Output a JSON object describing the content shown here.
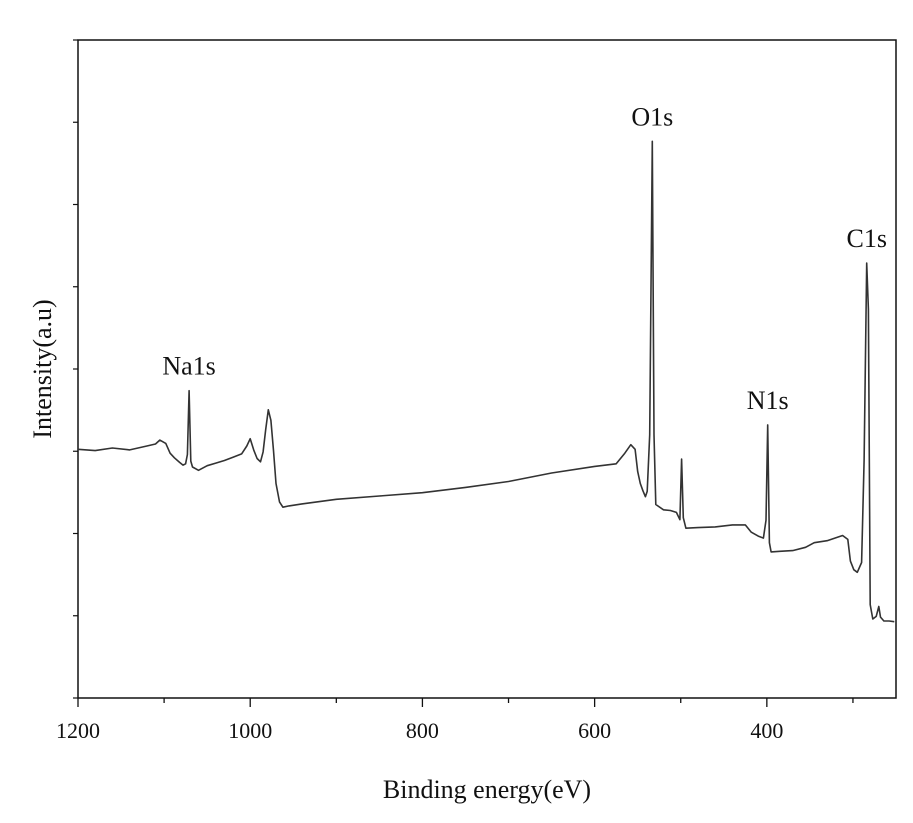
{
  "colors": {
    "line": "#333333",
    "axis": "#111111",
    "background": "#ffffff"
  },
  "chart_data": {
    "type": "line",
    "title": "",
    "xlabel": "Binding energy(eV)",
    "ylabel": "Intensity(a.u)",
    "xlim": [
      1200,
      250
    ],
    "ylim": [
      0,
      100
    ],
    "x_reversed": true,
    "y_tick_labels_shown": false,
    "grid": false,
    "legend": "none",
    "x_ticks": [
      1200,
      1000,
      800,
      600,
      400
    ],
    "x_tick_labels": [
      "1200",
      "1000",
      "800",
      "600",
      "400"
    ],
    "series": [
      {
        "points": [
          [
            1200,
            37.8
          ],
          [
            1180,
            37.6
          ],
          [
            1160,
            38.0
          ],
          [
            1140,
            37.7
          ],
          [
            1120,
            38.3
          ],
          [
            1110,
            38.6
          ],
          [
            1105,
            39.2
          ],
          [
            1098,
            38.7
          ],
          [
            1093,
            37.2
          ],
          [
            1088,
            36.5
          ],
          [
            1082,
            35.8
          ],
          [
            1078,
            35.4
          ],
          [
            1075,
            35.6
          ],
          [
            1073,
            37.0
          ],
          [
            1071,
            46.7
          ],
          [
            1069,
            36.0
          ],
          [
            1067,
            35.1
          ],
          [
            1060,
            34.6
          ],
          [
            1050,
            35.3
          ],
          [
            1040,
            35.7
          ],
          [
            1030,
            36.1
          ],
          [
            1020,
            36.6
          ],
          [
            1010,
            37.1
          ],
          [
            1004,
            38.3
          ],
          [
            1000,
            39.4
          ],
          [
            996,
            37.7
          ],
          [
            992,
            36.4
          ],
          [
            988,
            35.9
          ],
          [
            985,
            37.4
          ],
          [
            982,
            40.8
          ],
          [
            979,
            43.8
          ],
          [
            976,
            42.2
          ],
          [
            973,
            37.6
          ],
          [
            970,
            32.6
          ],
          [
            966,
            29.8
          ],
          [
            962,
            29.0
          ],
          [
            955,
            29.2
          ],
          [
            940,
            29.5
          ],
          [
            900,
            30.2
          ],
          [
            850,
            30.7
          ],
          [
            800,
            31.2
          ],
          [
            750,
            32.0
          ],
          [
            700,
            32.9
          ],
          [
            650,
            34.2
          ],
          [
            600,
            35.2
          ],
          [
            575,
            35.6
          ],
          [
            565,
            37.2
          ],
          [
            558,
            38.5
          ],
          [
            553,
            37.8
          ],
          [
            550,
            34.4
          ],
          [
            547,
            32.6
          ],
          [
            544,
            31.5
          ],
          [
            541,
            30.6
          ],
          [
            539,
            31.4
          ],
          [
            536,
            40.0
          ],
          [
            533,
            84.6
          ],
          [
            531,
            40.0
          ],
          [
            529,
            29.4
          ],
          [
            520,
            28.6
          ],
          [
            512,
            28.5
          ],
          [
            505,
            28.2
          ],
          [
            501,
            27.1
          ],
          [
            499,
            36.3
          ],
          [
            497,
            27.4
          ],
          [
            494,
            25.8
          ],
          [
            480,
            25.9
          ],
          [
            460,
            26.0
          ],
          [
            440,
            26.3
          ],
          [
            425,
            26.3
          ],
          [
            418,
            25.2
          ],
          [
            410,
            24.6
          ],
          [
            404,
            24.3
          ],
          [
            401,
            27.0
          ],
          [
            399,
            41.5
          ],
          [
            397,
            23.6
          ],
          [
            395,
            22.2
          ],
          [
            385,
            22.3
          ],
          [
            370,
            22.4
          ],
          [
            355,
            22.9
          ],
          [
            345,
            23.6
          ],
          [
            330,
            23.9
          ],
          [
            312,
            24.7
          ],
          [
            306,
            24.1
          ],
          [
            303,
            20.8
          ],
          [
            299,
            19.5
          ],
          [
            295,
            19.1
          ],
          [
            290,
            20.6
          ],
          [
            287,
            36.1
          ],
          [
            284,
            66.1
          ],
          [
            282,
            59.1
          ],
          [
            280,
            14.2
          ],
          [
            277,
            12.0
          ],
          [
            273,
            12.4
          ],
          [
            270,
            13.9
          ],
          [
            268,
            12.3
          ],
          [
            264,
            11.7
          ],
          [
            258,
            11.7
          ],
          [
            252,
            11.6
          ]
        ]
      }
    ],
    "annotations": [
      {
        "text": "Na1s",
        "x": 1071,
        "y": 46.7
      },
      {
        "text": "O1s",
        "x": 533,
        "y": 84.6
      },
      {
        "text": "N1s",
        "x": 399,
        "y": 41.5
      },
      {
        "text": "C1s",
        "x": 284,
        "y": 66.1
      }
    ]
  }
}
